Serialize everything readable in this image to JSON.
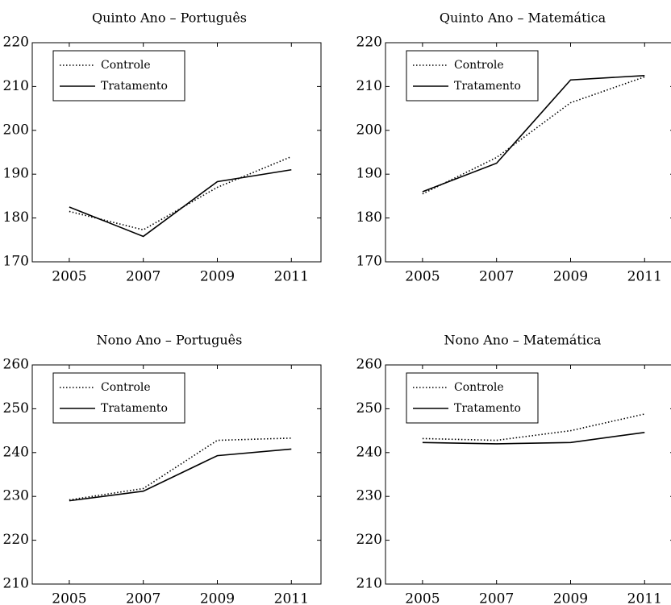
{
  "chart_data": [
    {
      "type": "line",
      "title": "Quinto Ano – Português",
      "x": [
        2005,
        2007,
        2009,
        2011
      ],
      "xlim": [
        2004,
        2011.8
      ],
      "xticks": [
        2005,
        2007,
        2009,
        2011
      ],
      "ylim": [
        170,
        220
      ],
      "yticks": [
        170,
        180,
        190,
        200,
        210,
        220
      ],
      "legend": "upper left",
      "series": [
        {
          "name": "Controle",
          "color": "#000000",
          "line_style": "dotted",
          "values": [
            181.5,
            177.3,
            187,
            194
          ]
        },
        {
          "name": "Tratamento",
          "color": "#000000",
          "line_style": "solid",
          "values": [
            182.5,
            175.8,
            188.3,
            191
          ]
        }
      ]
    },
    {
      "type": "line",
      "title": "Quinto Ano – Matemática",
      "x": [
        2005,
        2007,
        2009,
        2011
      ],
      "xlim": [
        2004,
        2011.8
      ],
      "xticks": [
        2005,
        2007,
        2009,
        2011
      ],
      "ylim": [
        170,
        220
      ],
      "yticks": [
        170,
        180,
        190,
        200,
        210,
        220
      ],
      "legend": "upper left",
      "series": [
        {
          "name": "Controle",
          "color": "#000000",
          "line_style": "dotted",
          "values": [
            185.5,
            193.8,
            206.3,
            212.2
          ]
        },
        {
          "name": "Tratamento",
          "color": "#000000",
          "line_style": "solid",
          "values": [
            186,
            192.5,
            211.5,
            212.5
          ]
        }
      ]
    },
    {
      "type": "line",
      "title": "Nono Ano – Português",
      "x": [
        2005,
        2007,
        2009,
        2011
      ],
      "xlim": [
        2004,
        2011.8
      ],
      "xticks": [
        2005,
        2007,
        2009,
        2011
      ],
      "ylim": [
        210,
        260
      ],
      "yticks": [
        210,
        220,
        230,
        240,
        250,
        260
      ],
      "legend": "upper left",
      "series": [
        {
          "name": "Controle",
          "color": "#000000",
          "line_style": "dotted",
          "values": [
            229.2,
            231.8,
            242.8,
            243.3
          ]
        },
        {
          "name": "Tratamento",
          "color": "#000000",
          "line_style": "solid",
          "values": [
            229,
            231.2,
            239.3,
            240.8
          ]
        }
      ]
    },
    {
      "type": "line",
      "title": "Nono Ano – Matemática",
      "x": [
        2005,
        2007,
        2009,
        2011
      ],
      "xlim": [
        2004,
        2011.8
      ],
      "xticks": [
        2005,
        2007,
        2009,
        2011
      ],
      "ylim": [
        210,
        260
      ],
      "yticks": [
        210,
        220,
        230,
        240,
        250,
        260
      ],
      "legend": "upper left",
      "series": [
        {
          "name": "Controle",
          "color": "#000000",
          "line_style": "dotted",
          "values": [
            243.2,
            242.8,
            245,
            248.8
          ]
        },
        {
          "name": "Tratamento",
          "color": "#000000",
          "line_style": "solid",
          "values": [
            242.3,
            242,
            242.3,
            244.6
          ]
        }
      ]
    }
  ]
}
